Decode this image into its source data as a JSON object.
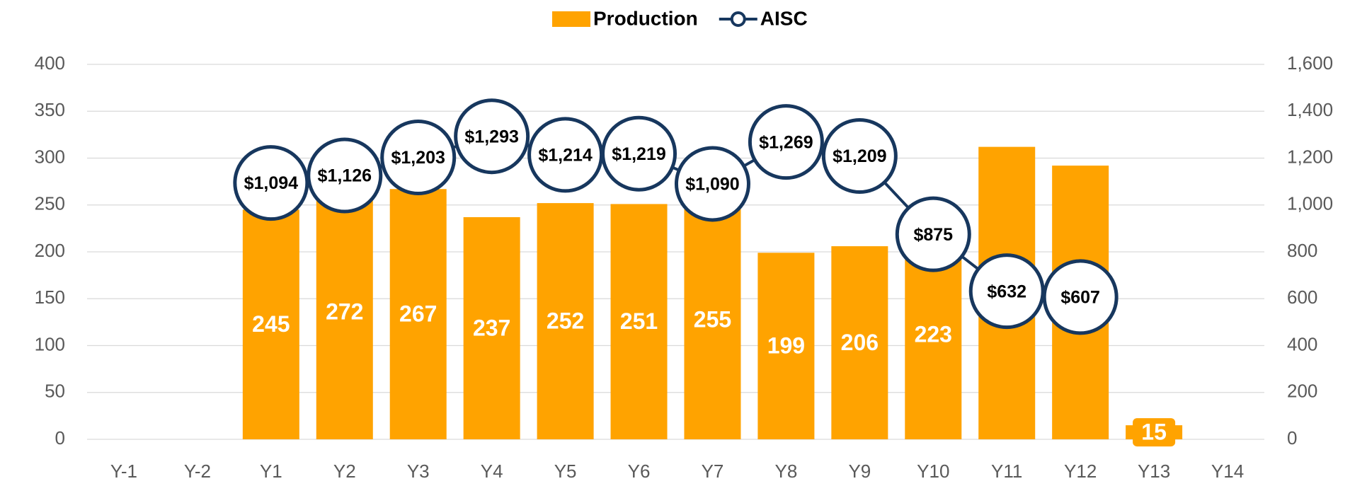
{
  "chart_data": {
    "type": "bar_line",
    "categories": [
      "Y-1",
      "Y-2",
      "Y1",
      "Y2",
      "Y3",
      "Y4",
      "Y5",
      "Y6",
      "Y7",
      "Y8",
      "Y9",
      "Y10",
      "Y11",
      "Y12",
      "Y13",
      "Y14"
    ],
    "series": [
      {
        "name": "Production",
        "type": "bar",
        "color": "#FFA300",
        "values": [
          null,
          null,
          245,
          272,
          267,
          237,
          252,
          251,
          255,
          199,
          206,
          223,
          312,
          292,
          15,
          null
        ]
      },
      {
        "name": "AISC",
        "type": "line",
        "axis": "y2",
        "color": "#17375E",
        "values": [
          null,
          null,
          1094,
          1126,
          1203,
          1293,
          1214,
          1219,
          1090,
          1269,
          1209,
          875,
          632,
          607,
          null,
          null
        ],
        "value_labels": [
          null,
          null,
          "$1,094",
          "$1,126",
          "$1,203",
          "$1,293",
          "$1,214",
          "$1,219",
          "$1,090",
          "$1,269",
          "$1,209",
          "$875",
          "$632",
          "$607",
          null,
          null
        ]
      }
    ],
    "ylim": [
      0,
      400
    ],
    "yticks": [
      0,
      50,
      100,
      150,
      200,
      250,
      300,
      350,
      400
    ],
    "y2lim": [
      0,
      1600
    ],
    "y2ticks": [
      0,
      200,
      400,
      600,
      800,
      {
        "value": 1000,
        "label": "1,000"
      },
      {
        "value": 1200,
        "label": "1,200"
      },
      {
        "value": 1400,
        "label": "1,400"
      },
      {
        "value": 1600,
        "label": "1,600"
      }
    ],
    "grid": true,
    "legend": "top"
  }
}
